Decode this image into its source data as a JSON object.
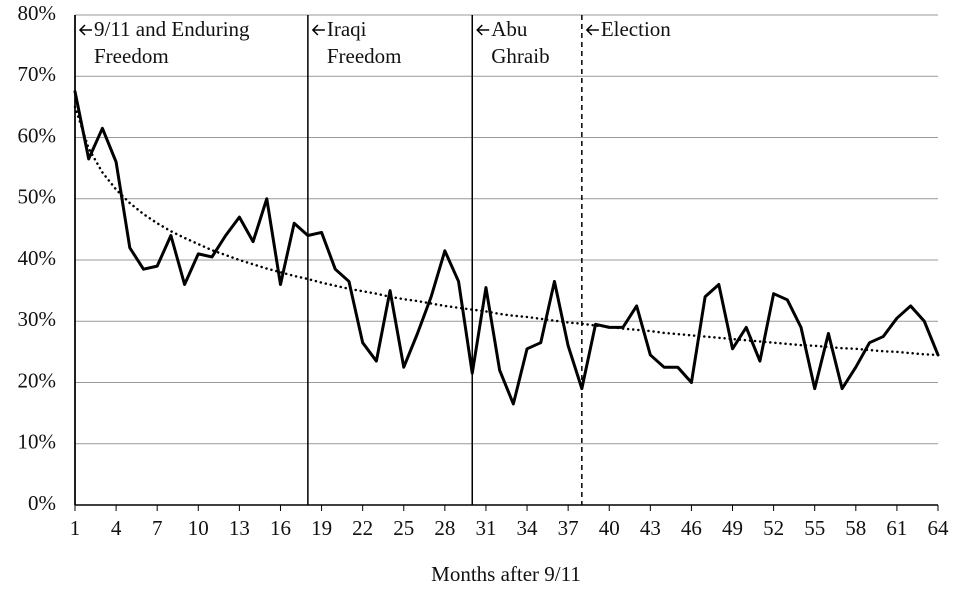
{
  "chart_data": {
    "type": "line",
    "x_label": "Months after 9/11",
    "x": [
      1,
      2,
      3,
      4,
      5,
      6,
      7,
      8,
      9,
      10,
      11,
      12,
      13,
      14,
      15,
      16,
      17,
      18,
      19,
      20,
      21,
      22,
      23,
      24,
      25,
      26,
      27,
      28,
      29,
      30,
      31,
      32,
      33,
      34,
      35,
      36,
      37,
      38,
      39,
      40,
      41,
      42,
      43,
      44,
      45,
      46,
      47,
      48,
      49,
      50,
      51,
      52,
      53,
      54,
      55,
      56,
      57,
      58,
      59,
      60,
      61,
      62,
      63,
      64
    ],
    "series": [
      {
        "color": "#000000",
        "style": "solid",
        "values": [
          67.5,
          56.5,
          61.5,
          56,
          42,
          38.5,
          39,
          44,
          36,
          41,
          40.5,
          44,
          47,
          43,
          50,
          36,
          46,
          44,
          44.5,
          38.5,
          36.5,
          26.5,
          23.5,
          35,
          22.5,
          28,
          34,
          41.5,
          36.5,
          21.5,
          35.5,
          22,
          16.5,
          25.5,
          26.5,
          36.5,
          26,
          19,
          29.5,
          29,
          29,
          32.5,
          24.5,
          22.5,
          22.5,
          20,
          34,
          36,
          25.5,
          29,
          23.5,
          34.5,
          33.5,
          29,
          19,
          28,
          19,
          22.5,
          26.5,
          27.5,
          30.5,
          32.5,
          30,
          24.5
        ]
      },
      {
        "color": "#000000",
        "style": "dotted",
        "values": [
          65.0,
          58.2,
          54.3,
          51.5,
          49.3,
          47.5,
          46.0,
          44.7,
          43.6,
          42.6,
          41.6,
          40.8,
          40.0,
          39.3,
          38.6,
          38.0,
          37.4,
          36.9,
          36.3,
          35.8,
          35.3,
          34.9,
          34.5,
          34.0,
          33.6,
          33.3,
          32.9,
          32.5,
          32.2,
          31.9,
          31.6,
          31.2,
          30.9,
          30.7,
          30.4,
          30.1,
          29.8,
          29.6,
          29.3,
          29.1,
          28.8,
          28.6,
          28.4,
          28.1,
          27.9,
          27.7,
          27.5,
          27.3,
          27.1,
          26.9,
          26.7,
          26.5,
          26.3,
          26.1,
          26.0,
          25.8,
          25.6,
          25.5,
          25.3,
          25.1,
          25.0,
          24.8,
          24.6,
          24.5
        ]
      }
    ],
    "annotations": [
      {
        "x": 1,
        "style": "solid",
        "label": [
          "9/11 and Enduring",
          "Freedom"
        ]
      },
      {
        "x": 18,
        "style": "solid",
        "label": [
          "Iraqi",
          "Freedom"
        ]
      },
      {
        "x": 30,
        "style": "solid",
        "label": [
          "Abu",
          "Ghraib"
        ]
      },
      {
        "x": 38,
        "style": "dashed",
        "label": [
          "Election"
        ]
      }
    ],
    "xlim": [
      1,
      64
    ],
    "xticks": [
      1,
      4,
      7,
      10,
      13,
      16,
      19,
      22,
      25,
      28,
      31,
      34,
      37,
      40,
      43,
      46,
      49,
      52,
      55,
      58,
      61,
      64
    ],
    "ylim": [
      0,
      80
    ],
    "yticks": [
      {
        "value": 0,
        "label": "0%"
      },
      {
        "value": 10,
        "label": "10%"
      },
      {
        "value": 20,
        "label": "20%"
      },
      {
        "value": 30,
        "label": "30%"
      },
      {
        "value": 40,
        "label": "40%"
      },
      {
        "value": 50,
        "label": "50%"
      },
      {
        "value": 60,
        "label": "60%"
      },
      {
        "value": 70,
        "label": "70%"
      },
      {
        "value": 80,
        "label": "80%"
      }
    ],
    "grid": true
  }
}
